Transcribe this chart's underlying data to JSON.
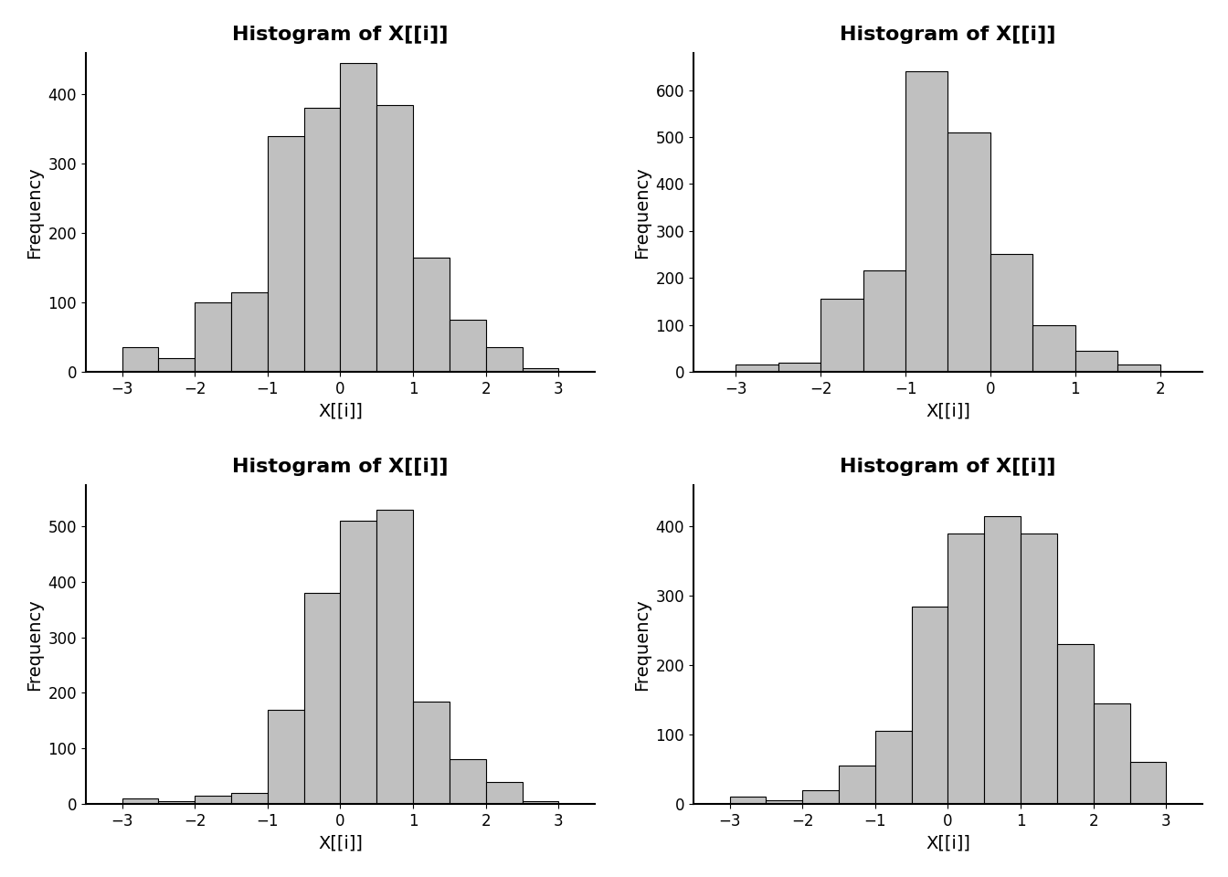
{
  "title": "Histogram of X[[i]]",
  "xlabel": "X[[i]]",
  "ylabel": "Frequency",
  "bar_color": "#c0c0c0",
  "bar_edge_color": "#000000",
  "background_color": "#ffffff",
  "title_fontsize": 16,
  "label_fontsize": 14,
  "tick_fontsize": 12,
  "plots": [
    {
      "bin_edges": [
        -3.0,
        -2.5,
        -2.0,
        -1.5,
        -1.0,
        -0.5,
        0.0,
        0.5,
        1.0,
        1.5,
        2.0,
        2.5,
        3.0
      ],
      "counts": [
        35,
        20,
        100,
        115,
        340,
        380,
        445,
        385,
        165,
        75,
        35,
        5
      ],
      "xlim": [
        -3.5,
        3.5
      ],
      "ylim": [
        0,
        460
      ],
      "xticks": [
        -3,
        -2,
        -1,
        0,
        1,
        2,
        3
      ],
      "yticks": [
        0,
        100,
        200,
        300,
        400
      ]
    },
    {
      "bin_edges": [
        -3.0,
        -2.5,
        -2.0,
        -1.5,
        -1.0,
        -0.5,
        0.0,
        0.5,
        1.0,
        1.5,
        2.0
      ],
      "counts": [
        15,
        20,
        155,
        215,
        640,
        510,
        250,
        100,
        45,
        15
      ],
      "xlim": [
        -3.5,
        2.5
      ],
      "ylim": [
        0,
        680
      ],
      "xticks": [
        -3,
        -2,
        -1,
        0,
        1,
        2
      ],
      "yticks": [
        0,
        100,
        200,
        300,
        400,
        500,
        600
      ]
    },
    {
      "bin_edges": [
        -3.0,
        -2.5,
        -2.0,
        -1.5,
        -1.0,
        -0.5,
        0.0,
        0.5,
        1.0,
        1.5,
        2.0,
        2.5,
        3.0
      ],
      "counts": [
        10,
        5,
        15,
        20,
        170,
        380,
        510,
        530,
        185,
        80,
        40,
        5
      ],
      "xlim": [
        -3.5,
        3.5
      ],
      "ylim": [
        0,
        575
      ],
      "xticks": [
        -3,
        -2,
        -1,
        0,
        1,
        2,
        3
      ],
      "yticks": [
        0,
        100,
        200,
        300,
        400,
        500
      ]
    },
    {
      "bin_edges": [
        -3.0,
        -2.5,
        -2.0,
        -1.5,
        -1.0,
        -0.5,
        0.0,
        0.5,
        1.0,
        1.5,
        2.0,
        2.5,
        3.0
      ],
      "counts": [
        10,
        5,
        20,
        55,
        105,
        285,
        390,
        415,
        390,
        230,
        145,
        60
      ],
      "xlim": [
        -3.5,
        3.5
      ],
      "ylim": [
        0,
        460
      ],
      "xticks": [
        -3,
        -2,
        -1,
        0,
        1,
        2,
        3
      ],
      "yticks": [
        0,
        100,
        200,
        300,
        400
      ]
    }
  ]
}
